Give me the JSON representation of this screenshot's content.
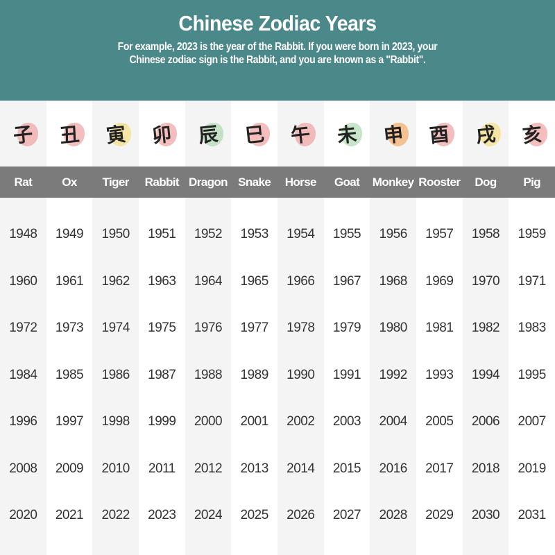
{
  "header": {
    "title": "Chinese Zodiac Years",
    "subtitle_line1": "For example, 2023 is the year of the Rabbit. If you were born in 2023, your",
    "subtitle_line2": "Chinese zodiac sign is the Rabbit, and you are known as a \"Rabbit\"."
  },
  "colors": {
    "header_bg": "#4b8889",
    "name_bar_bg": "#7b7b7b",
    "shaded_column": "#f4f4f4"
  },
  "signs": [
    {
      "name": "Rat",
      "icon": "rat-icon",
      "glyph": "子",
      "accent": "#f0a8a8",
      "years": [
        "1948",
        "1960",
        "1972",
        "1984",
        "1996",
        "2008",
        "2020"
      ]
    },
    {
      "name": "Ox",
      "icon": "ox-icon",
      "glyph": "丑",
      "accent": "#f0a8a8",
      "years": [
        "1949",
        "1961",
        "1973",
        "1985",
        "1997",
        "2009",
        "2021"
      ]
    },
    {
      "name": "Tiger",
      "icon": "tiger-icon",
      "glyph": "寅",
      "accent": "#f5e08a",
      "years": [
        "1950",
        "1962",
        "1974",
        "1986",
        "1998",
        "2010",
        "2022"
      ]
    },
    {
      "name": "Rabbit",
      "icon": "rabbit-icon",
      "glyph": "卯",
      "accent": "#f0a8a8",
      "years": [
        "1951",
        "1963",
        "1975",
        "1987",
        "1999",
        "2011",
        "2023"
      ]
    },
    {
      "name": "Dragon",
      "icon": "dragon-icon",
      "glyph": "辰",
      "accent": "#b5dcb8",
      "years": [
        "1952",
        "1964",
        "1976",
        "1988",
        "2000",
        "2012",
        "2024"
      ]
    },
    {
      "name": "Snake",
      "icon": "snake-icon",
      "glyph": "巳",
      "accent": "#f0a8a8",
      "years": [
        "1953",
        "1965",
        "1977",
        "1989",
        "2001",
        "2013",
        "2025"
      ]
    },
    {
      "name": "Horse",
      "icon": "horse-icon",
      "glyph": "午",
      "accent": "#f0a8a8",
      "years": [
        "1954",
        "1966",
        "1978",
        "1990",
        "2002",
        "2014",
        "2026"
      ]
    },
    {
      "name": "Goat",
      "icon": "goat-icon",
      "glyph": "未",
      "accent": "#b5dcb8",
      "years": [
        "1955",
        "1967",
        "1979",
        "1991",
        "2003",
        "2015",
        "2027"
      ]
    },
    {
      "name": "Monkey",
      "icon": "monkey-icon",
      "glyph": "申",
      "accent": "#f5b070",
      "years": [
        "1956",
        "1968",
        "1980",
        "1992",
        "2004",
        "2016",
        "2028"
      ]
    },
    {
      "name": "Rooster",
      "icon": "rooster-icon",
      "glyph": "酉",
      "accent": "#f0a8a8",
      "years": [
        "1957",
        "1969",
        "1981",
        "1993",
        "2005",
        "2017",
        "2029"
      ]
    },
    {
      "name": "Dog",
      "icon": "dog-icon",
      "glyph": "戌",
      "accent": "#f5e08a",
      "years": [
        "1958",
        "1970",
        "1982",
        "1994",
        "2006",
        "2018",
        "2030"
      ]
    },
    {
      "name": "Pig",
      "icon": "pig-icon",
      "glyph": "亥",
      "accent": "#f0a8a8",
      "years": [
        "1959",
        "1971",
        "1983",
        "1995",
        "2007",
        "2019",
        "2031"
      ]
    }
  ]
}
